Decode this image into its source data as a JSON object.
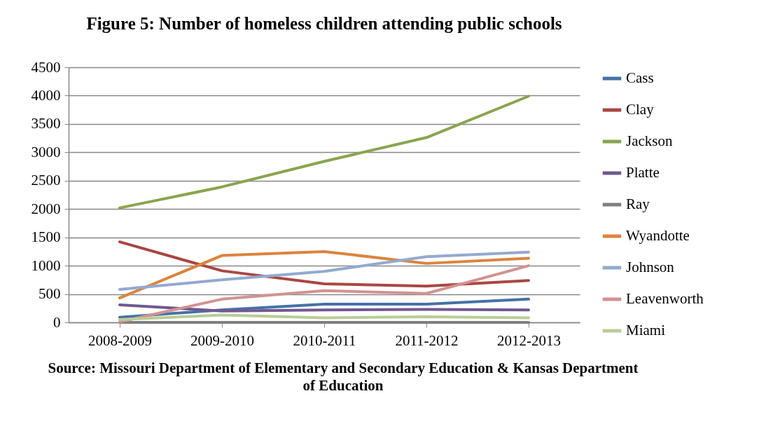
{
  "chart_data": {
    "type": "line",
    "title": "Figure 5: Number of homeless children attending public schools",
    "categories": [
      "2008-2009",
      "2009-2010",
      "2010-2011",
      "2011-2012",
      "2012-2013"
    ],
    "series": [
      {
        "name": "Cass",
        "color": "#4572a7",
        "values": [
          90,
          220,
          320,
          320,
          410
        ]
      },
      {
        "name": "Clay",
        "color": "#aa4643",
        "values": [
          1420,
          910,
          680,
          640,
          740
        ]
      },
      {
        "name": "Jackson",
        "color": "#89a54e",
        "values": [
          2020,
          2390,
          2840,
          3260,
          3990
        ]
      },
      {
        "name": "Platte",
        "color": "#71588f",
        "values": [
          310,
          200,
          220,
          230,
          220
        ]
      },
      {
        "name": "Ray",
        "color": "#7f7f7f",
        "values": [
          0,
          0,
          0,
          0,
          0
        ]
      },
      {
        "name": "Wyandotte",
        "color": "#db843d",
        "values": [
          430,
          1180,
          1250,
          1040,
          1130
        ]
      },
      {
        "name": "Johnson",
        "color": "#93a9cf",
        "values": [
          580,
          750,
          900,
          1160,
          1240
        ]
      },
      {
        "name": "Leavenworth",
        "color": "#d19392",
        "values": [
          10,
          410,
          560,
          510,
          1000
        ]
      },
      {
        "name": "Miami",
        "color": "#b9cd96",
        "values": [
          50,
          130,
          80,
          100,
          80
        ]
      }
    ],
    "ylim": [
      0,
      4500
    ],
    "yticks": [
      0,
      500,
      1000,
      1500,
      2000,
      2500,
      3000,
      3500,
      4000,
      4500
    ],
    "grid": "y",
    "legend": "right",
    "marker": "none",
    "line_style": "solid",
    "annotations": [
      "Source: Missouri Department of Elementary and Secondary Education & Kansas Department of Education"
    ]
  }
}
